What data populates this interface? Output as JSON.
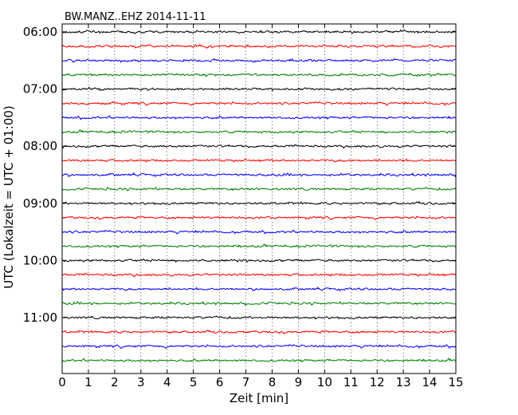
{
  "chart_data": {
    "type": "line",
    "title": "BW.MANZ..EHZ 2014-11-11",
    "xlabel": "Zeit  [min]",
    "ylabel": "UTC (Lokalzeit = UTC + 01:00)",
    "xlim": [
      0,
      15
    ],
    "x_ticks": [
      "0",
      "1",
      "2",
      "3",
      "4",
      "5",
      "6",
      "7",
      "8",
      "9",
      "10",
      "11",
      "12",
      "13",
      "14",
      "15"
    ],
    "y_tick_labels": [
      "06:00",
      "07:00",
      "08:00",
      "09:00",
      "10:00",
      "11:00"
    ],
    "grid": true,
    "trace_interval_minutes": 15,
    "trace_start": "06:00",
    "trace_count": 24,
    "trace_colors": [
      "#000000",
      "#ff0000",
      "#0000ff",
      "#008000"
    ],
    "series": []
  }
}
